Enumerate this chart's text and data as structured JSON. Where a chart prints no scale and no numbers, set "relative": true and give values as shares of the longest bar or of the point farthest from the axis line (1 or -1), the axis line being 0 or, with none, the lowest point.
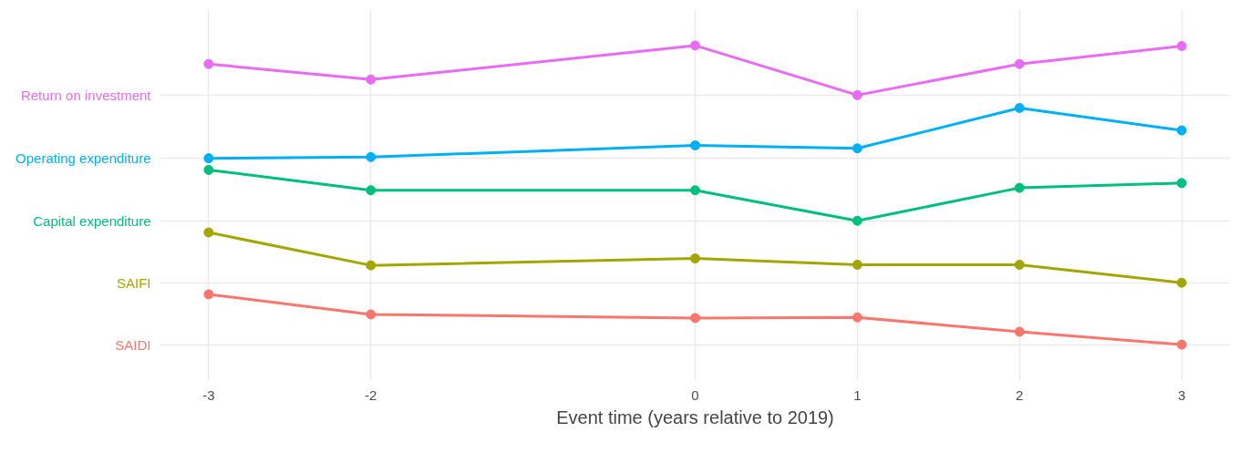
{
  "chart_data": {
    "type": "line",
    "xlabel": "Event time (years relative to 2019)",
    "x": [
      -3,
      -2,
      0,
      1,
      2,
      3
    ],
    "xlim": [
      -3.3,
      3.3
    ],
    "xticks": [
      -3,
      -2,
      0,
      1,
      2,
      3
    ],
    "relative": true,
    "grid": true,
    "marker": "circle",
    "line_style": "solid",
    "series": [
      {
        "name": "SAIDI",
        "color": "#f8766d",
        "values": [
          0.168,
          0.101,
          0.089,
          0.091,
          0.043,
          0
        ]
      },
      {
        "name": "SAIFI",
        "color": "#a3a500",
        "values": [
          0.375,
          0.265,
          0.288,
          0.267,
          0.267,
          0.207
        ]
      },
      {
        "name": "Capital expenditure",
        "color": "#00bf7d",
        "values": [
          0.584,
          0.516,
          0.516,
          0.414,
          0.524,
          0.54
        ]
      },
      {
        "name": "Operating expenditure",
        "color": "#00b0f6",
        "values": [
          0.623,
          0.627,
          0.666,
          0.656,
          0.791,
          0.716
        ]
      },
      {
        "name": "Return on investment",
        "color": "#e76bf3",
        "values": [
          0.938,
          0.886,
          1.0,
          0.834,
          0.938,
          0.998
        ]
      }
    ]
  }
}
